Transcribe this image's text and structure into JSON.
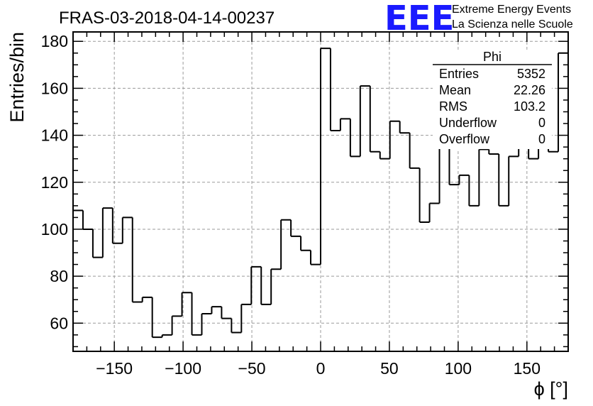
{
  "title": "FRAS-03-2018-04-14-00237",
  "logo": {
    "mark": "EEE",
    "line1": "Extreme Energy Events",
    "line2": "La Scienza nelle Scuole",
    "color": "#1a1aff"
  },
  "stats": {
    "name": "Phi",
    "rows": [
      {
        "label": "Entries",
        "value": "5352"
      },
      {
        "label": "Mean",
        "value": "22.26"
      },
      {
        "label": "RMS",
        "value": "103.2"
      },
      {
        "label": "Underflow",
        "value": "0"
      },
      {
        "label": "Overflow",
        "value": "0"
      }
    ]
  },
  "chart_data": {
    "type": "histogram",
    "xlabel": "ϕ [°]",
    "ylabel": "Entries/bin",
    "xlim": [
      -180,
      180
    ],
    "ylim": [
      48,
      184
    ],
    "bin_width": 7.2,
    "grid": true,
    "x_ticks": [
      -150,
      -100,
      -50,
      0,
      50,
      100,
      150
    ],
    "x_tick_labels": [
      "−150",
      "−100",
      "−50",
      "0",
      "50",
      "100",
      "150"
    ],
    "y_ticks": [
      60,
      80,
      100,
      120,
      140,
      160,
      180
    ],
    "y_tick_labels": [
      "60",
      "80",
      "100",
      "120",
      "140",
      "160",
      "180"
    ],
    "bin_edges_start": -180,
    "values": [
      108,
      100,
      88,
      109,
      94,
      105,
      69,
      71,
      54,
      55,
      63,
      73,
      55,
      64,
      67,
      62,
      56,
      68,
      84,
      68,
      83,
      104,
      97,
      91,
      85,
      177,
      142,
      147,
      131,
      161,
      133,
      130,
      146,
      141,
      126,
      103,
      111,
      138,
      119,
      123,
      110,
      134,
      132,
      110,
      131,
      143,
      130,
      153,
      133,
      175
    ]
  }
}
